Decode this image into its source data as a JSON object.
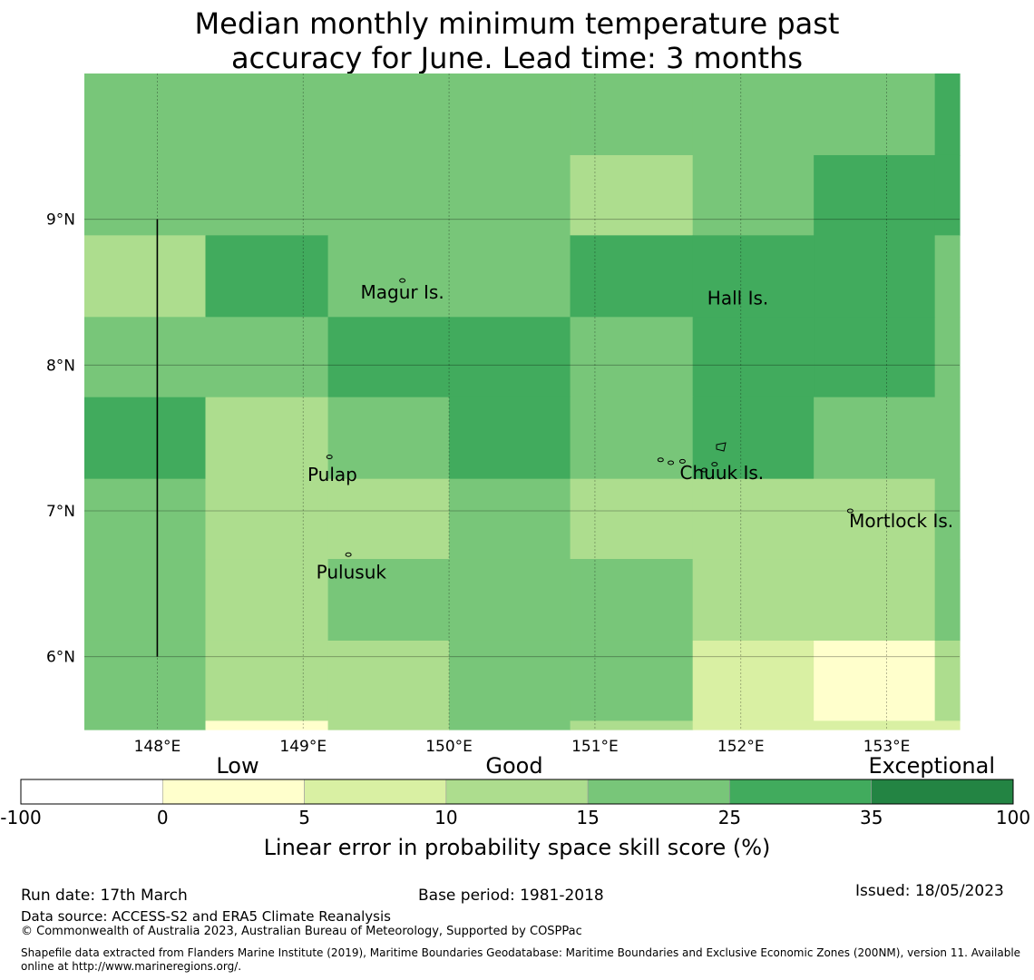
{
  "title": {
    "line1": "Median monthly minimum temperature past",
    "line2": "accuracy for June. Lead time: 3 months"
  },
  "map": {
    "lon_min": 147.5,
    "lon_max": 153.5,
    "lat_min": 5.5,
    "lat_max": 10.0,
    "lon_ticks": [
      148,
      149,
      150,
      151,
      152,
      153
    ],
    "lon_tick_labels": [
      "148°E",
      "149°E",
      "150°E",
      "151°E",
      "152°E",
      "153°E"
    ],
    "lat_ticks": [
      9,
      8,
      7,
      6
    ],
    "lat_tick_labels": [
      "9°N",
      "8°N",
      "7°N",
      "6°N"
    ],
    "grid_col_edges": [
      147.5,
      148.33,
      149.17,
      150.0,
      150.83,
      151.67,
      152.5,
      153.33,
      153.5
    ],
    "grid_row_edges": [
      10.0,
      9.44,
      8.89,
      8.33,
      7.78,
      7.22,
      6.67,
      6.11,
      5.56,
      5.5
    ],
    "skill_classes": [
      [
        4,
        4,
        4,
        4,
        4,
        4,
        4,
        5
      ],
      [
        4,
        4,
        4,
        4,
        3,
        4,
        5,
        5
      ],
      [
        3,
        5,
        4,
        4,
        5,
        5,
        5,
        4
      ],
      [
        4,
        4,
        5,
        5,
        4,
        5,
        5,
        4
      ],
      [
        5,
        3,
        4,
        5,
        4,
        5,
        4,
        4
      ],
      [
        4,
        3,
        3,
        4,
        3,
        3,
        3,
        4
      ],
      [
        4,
        3,
        4,
        4,
        4,
        3,
        3,
        4
      ],
      [
        4,
        3,
        3,
        4,
        4,
        2,
        1,
        3
      ],
      [
        4,
        1,
        3,
        4,
        3,
        2,
        2,
        2
      ]
    ],
    "boundary_line": {
      "lon": 148.0,
      "lat_from": 9.0,
      "lat_to": 6.0
    },
    "places": [
      {
        "name": "Magur Is.",
        "lon": 149.68,
        "lat": 8.5
      },
      {
        "name": "Hall Is.",
        "lon": 151.98,
        "lat": 8.46
      },
      {
        "name": "Pulap",
        "lon": 149.2,
        "lat": 7.25
      },
      {
        "name": "Chuuk Is.",
        "lon": 151.87,
        "lat": 7.26
      },
      {
        "name": "Mortlock Is.",
        "lon": 153.1,
        "lat": 6.93
      },
      {
        "name": "Pulusuk",
        "lon": 149.33,
        "lat": 6.58
      }
    ]
  },
  "legend": {
    "category_labels": [
      "Low",
      "Good",
      "Exceptional"
    ],
    "bins": [
      {
        "from": "-100",
        "to": "0",
        "color": "#ffffff"
      },
      {
        "from": "0",
        "to": "5",
        "color": "#ffffcc"
      },
      {
        "from": "5",
        "to": "10",
        "color": "#d9f0a3"
      },
      {
        "from": "10",
        "to": "15",
        "color": "#addd8e"
      },
      {
        "from": "15",
        "to": "25",
        "color": "#78c679"
      },
      {
        "from": "25",
        "to": "35",
        "color": "#41ab5d"
      },
      {
        "from": "35",
        "to": "100",
        "color": "#238443"
      }
    ],
    "tick_labels": [
      "-100",
      "0",
      "5",
      "10",
      "15",
      "25",
      "35",
      "100"
    ],
    "axis_label": "Linear error in probability space skill score (%)"
  },
  "footer": {
    "run_date": "Run date: 17th March",
    "base_period": "Base period: 1981-2018",
    "issued": "Issued: 18/05/2023",
    "data_source": "Data source: ACCESS-S2 and ERA5 Climate Reanalysis",
    "copyright": "© Commonwealth of Australia 2023, Australian Bureau of Meteorology, Supported by COSPPac",
    "shapefile": "Shapefile data extracted from Flanders Marine Institute (2019), Maritime Boundaries Geodatabase: Maritime Boundaries and Exclusive Economic Zones (200NM), version 11. Available online at http://www.marineregions.org/."
  }
}
